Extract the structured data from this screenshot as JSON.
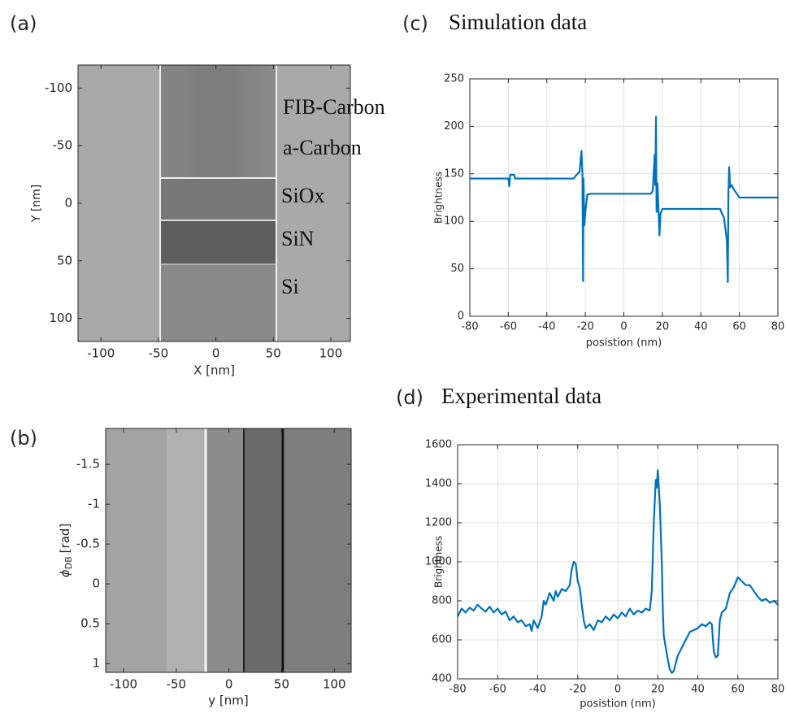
{
  "chart_data": [
    {
      "type": "image",
      "panel_label": "(a)",
      "x_label": "X [nm]",
      "y_label": "Y [nm]",
      "xlim": [
        -120,
        117
      ],
      "xticks": [
        -100,
        -50,
        0,
        50,
        100
      ],
      "ylim": [
        -120,
        120
      ],
      "yticks": [
        -100,
        -50,
        0,
        50,
        100
      ],
      "y_reversed": true,
      "annotations": [
        "FIB-Carbon",
        "a-Carbon",
        "SiOx",
        "SiN",
        "Si"
      ]
    },
    {
      "type": "image",
      "panel_label": "(b)",
      "x_label": "y [nm]",
      "y_label": {
        "symbol": "ϕ",
        "subscript": "DB",
        "unit": "[rad]"
      },
      "xlim": [
        -117,
        116
      ],
      "xticks": [
        -100,
        -50,
        0,
        50,
        100
      ],
      "ylim": [
        -1.95,
        1.11
      ],
      "yticks": [
        -1.5,
        -1,
        -0.5,
        0,
        0.5,
        1
      ],
      "y_reversed": true
    },
    {
      "type": "line",
      "panel_label": "(c)",
      "title": "Simulation data",
      "x_label": "posistion (nm)",
      "y_label": "Brightness",
      "xlim": [
        -80,
        80
      ],
      "xticks": [
        -80,
        -60,
        -40,
        -20,
        0,
        20,
        40,
        60,
        80
      ],
      "ylim": [
        0,
        250
      ],
      "yticks": [
        0,
        50,
        100,
        150,
        200,
        250
      ],
      "grid": true,
      "color": "#0072bd",
      "x": [
        -80,
        -60,
        -59.5,
        -59,
        -57,
        -56.5,
        -26,
        -25,
        -23,
        -22,
        -21.5,
        -21.2,
        -21,
        -20.5,
        -20,
        -19,
        -17,
        14,
        15,
        16,
        16.3,
        16.7,
        17,
        17.5,
        18.5,
        19,
        20,
        50,
        51,
        52,
        53.5,
        54,
        54.3,
        54.7,
        55.2,
        56,
        57,
        58,
        60,
        80
      ],
      "values": [
        145,
        145,
        137,
        149,
        149,
        145,
        145,
        148,
        152,
        174,
        150,
        37,
        145,
        96,
        110,
        128,
        129,
        129,
        132,
        170,
        138,
        210,
        110,
        140,
        85,
        108,
        113,
        113,
        108,
        104,
        80,
        36,
        128,
        157,
        136,
        138,
        134,
        131,
        125,
        125
      ]
    },
    {
      "type": "line",
      "panel_label": "(d)",
      "title": "Experimental data",
      "x_label": "posistion (nm)",
      "y_label": "Brightness",
      "xlim": [
        -80,
        80
      ],
      "xticks": [
        -80,
        -60,
        -40,
        -20,
        0,
        20,
        40,
        60,
        80
      ],
      "ylim": [
        400,
        1600
      ],
      "yticks": [
        400,
        600,
        800,
        1000,
        1200,
        1400,
        1600
      ],
      "grid": true,
      "color": "#0072bd",
      "x": [
        -80,
        -78,
        -76,
        -74,
        -72,
        -70,
        -68,
        -66,
        -64,
        -62,
        -60,
        -58,
        -56,
        -54,
        -52,
        -50,
        -48,
        -46,
        -44,
        -43,
        -42,
        -40,
        -38,
        -37,
        -36,
        -34,
        -32,
        -31,
        -30,
        -28,
        -26,
        -24,
        -23,
        -22,
        -21,
        -20,
        -19,
        -18,
        -17,
        -16,
        -14,
        -12,
        -10,
        -8,
        -6,
        -4,
        -2,
        0,
        2,
        4,
        6,
        8,
        10,
        12,
        14,
        16,
        17,
        18,
        19,
        19.5,
        20,
        21,
        22,
        22.5,
        23,
        24,
        25,
        26,
        27,
        28,
        30,
        32,
        34,
        36,
        38,
        40,
        42,
        44,
        46,
        47,
        48,
        49,
        50,
        51,
        52,
        54,
        56,
        58,
        60,
        62,
        64,
        66,
        68,
        70,
        72,
        74,
        76,
        78,
        80
      ],
      "values": [
        720,
        760,
        740,
        765,
        750,
        780,
        760,
        745,
        770,
        740,
        760,
        730,
        745,
        700,
        720,
        690,
        700,
        670,
        680,
        645,
        700,
        660,
        720,
        800,
        780,
        840,
        800,
        850,
        820,
        860,
        850,
        880,
        960,
        1000,
        990,
        900,
        870,
        780,
        700,
        660,
        680,
        650,
        700,
        690,
        720,
        700,
        730,
        710,
        740,
        720,
        760,
        730,
        750,
        740,
        760,
        750,
        850,
        1200,
        1420,
        1380,
        1470,
        1300,
        1000,
        760,
        620,
        560,
        500,
        450,
        430,
        440,
        520,
        560,
        600,
        640,
        650,
        660,
        680,
        670,
        690,
        680,
        540,
        510,
        520,
        700,
        740,
        760,
        840,
        870,
        920,
        900,
        880,
        880,
        850,
        820,
        800,
        810,
        790,
        800,
        780
      ]
    }
  ]
}
